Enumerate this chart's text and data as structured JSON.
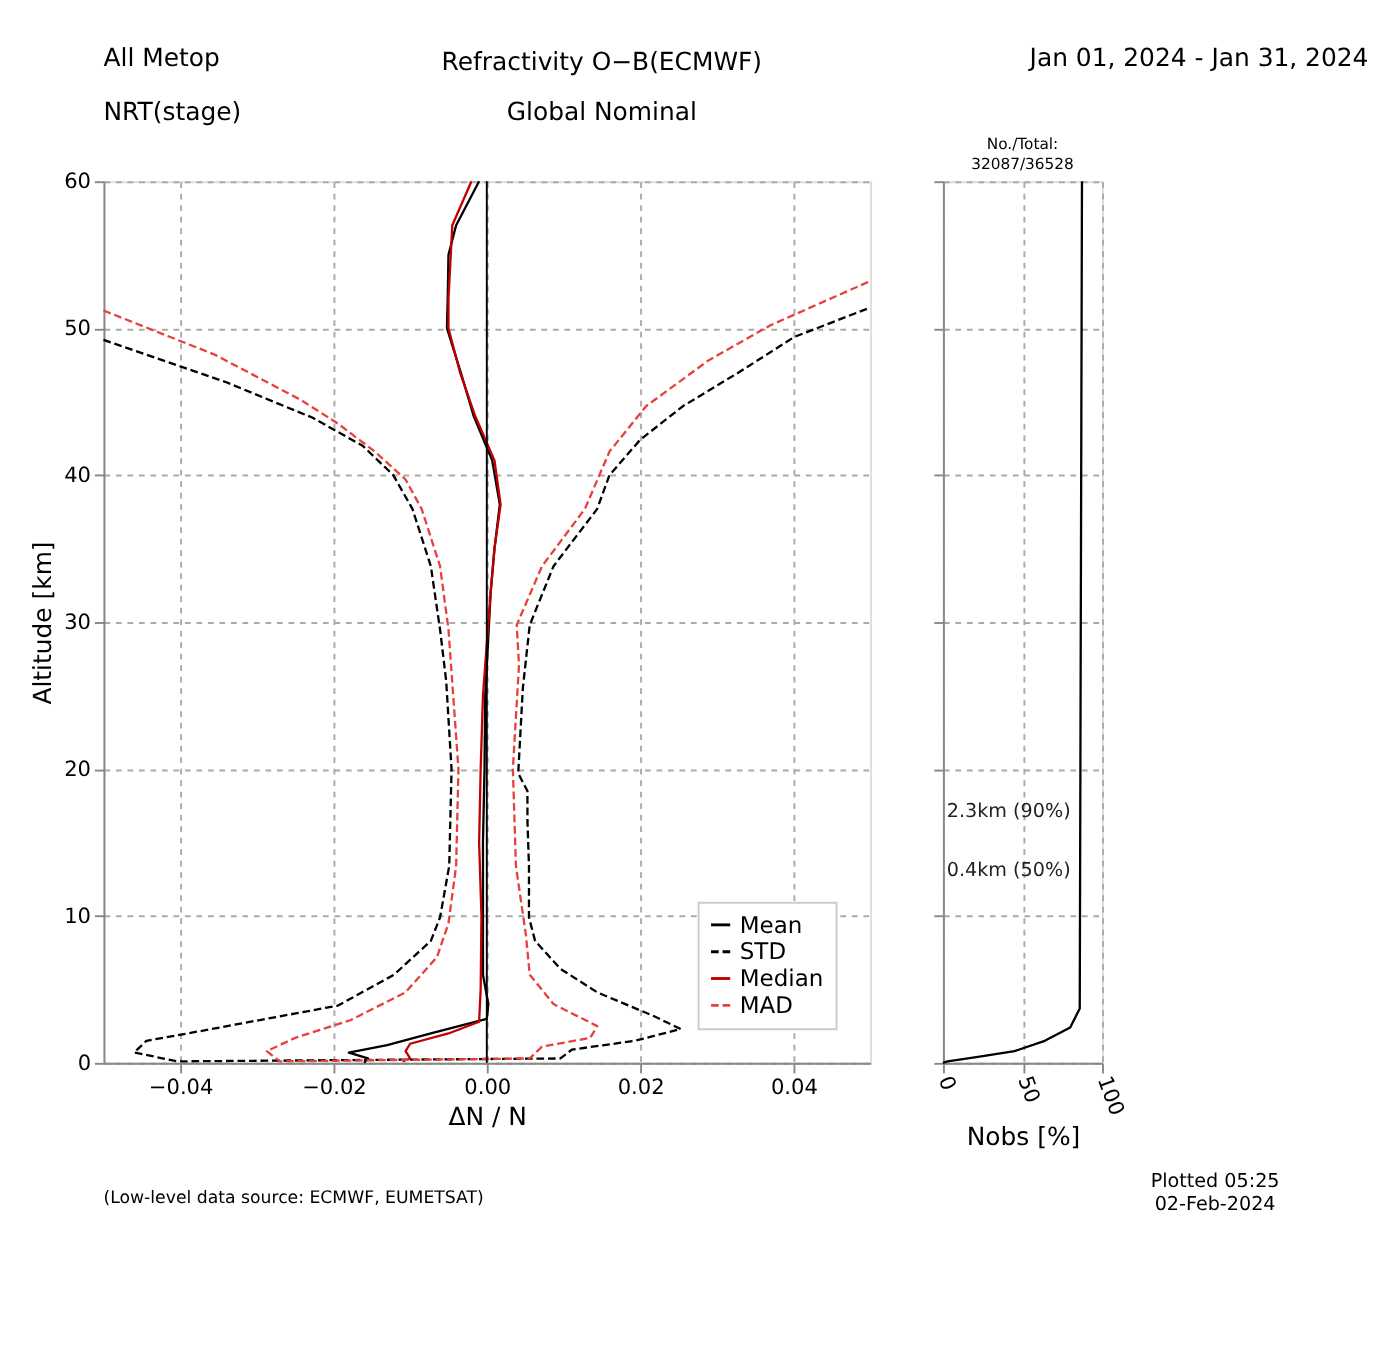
{
  "chart_data": [
    {
      "type": "line",
      "title": "Refractivity   O−B(ECMWF)",
      "subtitle": "Global   Nominal",
      "xlabel": "ΔN / N",
      "ylabel": "Altitude [km]",
      "xlim": [
        -0.05,
        0.05
      ],
      "xticks": [
        {
          "value": -0.04,
          "label": "−0.04"
        },
        {
          "value": -0.02,
          "label": "−0.02"
        },
        {
          "value": 0,
          "label": "0.00"
        },
        {
          "value": 0.02,
          "label": "0.02"
        },
        {
          "value": 0.04,
          "label": "0.04"
        }
      ],
      "ylim": [
        0,
        60
      ],
      "yticks": [
        0,
        10,
        20,
        30,
        40,
        50,
        60
      ],
      "grid": true,
      "legend": "bottom right",
      "ref_lines": [
        {
          "axis": "x",
          "value": 0,
          "color": "#000000"
        }
      ],
      "annotations": [
        "All Metop",
        "NRT(stage)",
        "Jan 01, 2024 - Jan 31, 2024",
        "(Low-level data source: ECMWF, EUMETSAT)",
        "Plotted 05:25\n02-Feb-2024"
      ],
      "series": [
        {
          "name": "Mean",
          "color": "#000000",
          "line_style": "solid",
          "x": [
            -0.016,
            -0.0155,
            -0.018,
            -0.013,
            -0.0073,
            0.0,
            0.0002,
            -0.0005,
            -0.0005,
            -0.0005,
            -0.0003,
            -0.0002,
            0.0002,
            0.0005,
            0.001,
            0.0017,
            0.0007,
            -0.0017,
            -0.0034,
            -0.0052,
            -0.0051,
            -0.005,
            -0.004,
            -0.001
          ],
          "values": [
            0,
            0.3,
            0.7,
            1.2,
            2,
            3,
            4,
            6,
            10,
            15,
            20,
            25,
            29,
            32,
            35,
            38,
            41,
            44,
            47,
            50,
            52,
            55,
            57,
            60
          ]
        },
        {
          "name": "STD",
          "color": "#000000",
          "line_style": "dashed",
          "x": [
            -0.05,
            -0.0339,
            -0.0227,
            -0.0162,
            -0.0122,
            -0.0097,
            -0.0073,
            -0.0061,
            -0.0053,
            -0.0046,
            -0.0049,
            -0.0061,
            -0.0073,
            -0.0121,
            -0.0194,
            -0.038,
            -0.0444,
            -0.046,
            -0.0403,
            0.0096,
            0.0111,
            0.0193,
            0.0253,
            0.0217,
            0.0144,
            0.0096,
            0.0063,
            0.0055,
            0.0055,
            0.0053,
            0.0053,
            0.0041,
            0.0047,
            0.0056,
            0.0087,
            0.0144,
            0.016,
            0.02,
            0.0256,
            0.0329,
            0.0401,
            0.05
          ],
          "values": [
            49.2,
            46.3,
            43.9,
            42,
            40,
            37.7,
            33.8,
            29.5,
            26,
            20,
            13.4,
            9.9,
            8.3,
            6,
            3.9,
            2.1,
            1.5,
            0.7,
            0.1,
            0.3,
            0.9,
            1.5,
            2.3,
            3.2,
            4.8,
            6.4,
            8.3,
            9.9,
            13.4,
            16.5,
            18.5,
            19.7,
            25.5,
            29.8,
            33.8,
            37.7,
            40,
            42.4,
            44.7,
            47,
            49.4,
            51.4
          ]
        },
        {
          "name": "Median",
          "color": "#c00000",
          "line_style": "solid",
          "x": [
            -0.011,
            -0.01,
            -0.0106,
            -0.01,
            -0.005,
            -0.001,
            -0.0008,
            -0.0007,
            -0.001,
            -0.0008,
            -0.0005,
            0.0005,
            0.001,
            0.0018,
            0.001,
            -0.0015,
            -0.0035,
            -0.005,
            -0.005,
            -0.0045,
            -0.002
          ],
          "values": [
            0.1,
            0.3,
            0.8,
            1.3,
            2,
            2.8,
            5,
            10,
            15,
            20,
            25,
            32,
            35,
            38,
            41,
            44,
            47,
            50,
            52,
            57,
            60
          ]
        },
        {
          "name": "MAD",
          "color": "#e8413c",
          "line_style": "dashed",
          "x": [
            -0.05,
            -0.0355,
            -0.0242,
            -0.0194,
            -0.0146,
            -0.0106,
            -0.0085,
            -0.0061,
            -0.005,
            -0.0037,
            -0.004,
            -0.005,
            -0.0065,
            -0.0106,
            -0.0178,
            -0.025,
            -0.0287,
            -0.027,
            0.0056,
            0.0072,
            0.0135,
            0.0144,
            0.0087,
            0.0056,
            0.0051,
            0.0038,
            0.0034,
            0.0042,
            0.0039,
            0.0072,
            0.0128,
            0.016,
            0.0208,
            0.0289,
            0.037,
            0.05
          ],
          "values": [
            51.2,
            48.2,
            45.1,
            43.5,
            41.6,
            39.7,
            37.7,
            33.8,
            29.5,
            20,
            13.4,
            9.5,
            7.2,
            4.8,
            2.9,
            1.7,
            0.8,
            0.1,
            0.3,
            1.1,
            1.7,
            2.5,
            4,
            6,
            8.7,
            13.4,
            20,
            27.1,
            29.8,
            33.8,
            37.7,
            41.6,
            44.7,
            47.8,
            50.2,
            53.2
          ]
        }
      ]
    },
    {
      "type": "line",
      "title": "No./Total:\n32087/36528",
      "xlabel": "Nobs [%]",
      "xlim": [
        0,
        100
      ],
      "xticks": [
        0,
        50,
        100
      ],
      "ylim": [
        0,
        60
      ],
      "yticks": [
        0,
        10,
        20,
        30,
        40,
        50,
        60
      ],
      "tick_labels": "x",
      "grid": true,
      "annotations": [
        "2.3km  (90%)",
        "0.4km  (50%)"
      ],
      "series": [
        {
          "color": "#000000",
          "line_style": "solid",
          "x": [
            0,
            3,
            22,
            45,
            64,
            80,
            86,
            87.4
          ],
          "values": [
            0,
            0.1,
            0.4,
            0.8,
            1.5,
            2.4,
            3.7,
            60
          ]
        }
      ]
    }
  ]
}
